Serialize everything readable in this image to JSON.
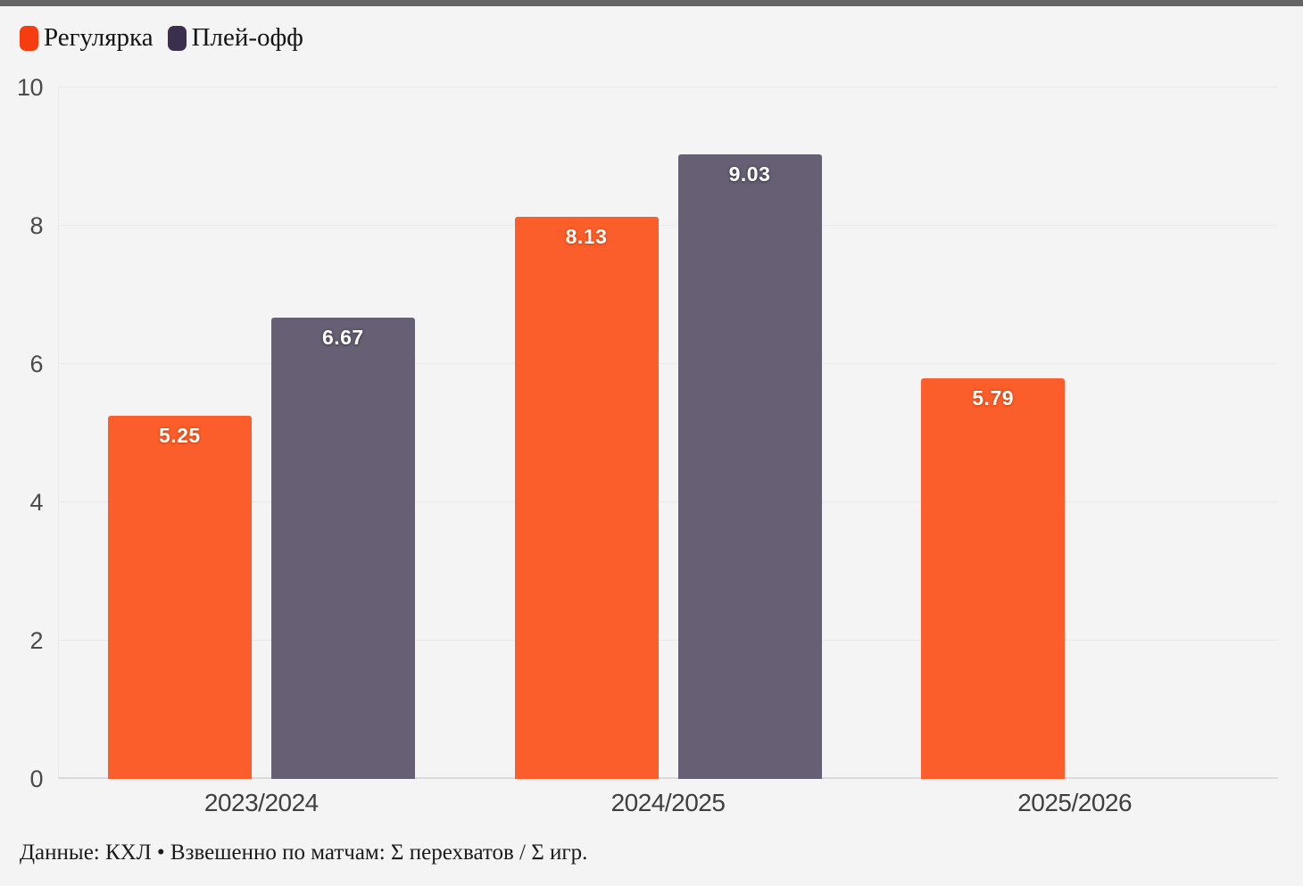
{
  "page": {
    "background": "#f5f4f5",
    "top_bar_color": "#646464"
  },
  "legend": {
    "items": [
      {
        "label": "Регулярка",
        "color": "#f53d10"
      },
      {
        "label": "Плей-офф",
        "color": "#3b2f4e"
      }
    ]
  },
  "chart_data": {
    "type": "bar",
    "categories": [
      "2023/2024",
      "2024/2025",
      "2025/2026"
    ],
    "series": [
      {
        "name": "Регулярка",
        "values": [
          5.25,
          8.13,
          5.79
        ],
        "bar_color": "#fb5e2b",
        "label_shadow": "#d8440f"
      },
      {
        "name": "Плей-офф",
        "values": [
          6.67,
          9.03,
          null
        ],
        "bar_color": "#675f73",
        "label_shadow": "#453e52"
      }
    ],
    "title": "",
    "xlabel": "",
    "ylabel": "",
    "ylim": [
      0,
      10
    ],
    "yticks": [
      0,
      2,
      4,
      6,
      8,
      10
    ],
    "grid": true,
    "legend_position": "top-left",
    "value_label_color": "#ffffff"
  },
  "footer": {
    "note": "Данные: КХЛ • Взвешенно по матчам: Σ перехватов / Σ игр."
  }
}
